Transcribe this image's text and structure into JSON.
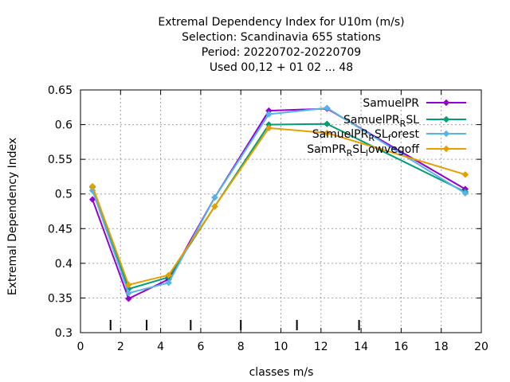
{
  "chart_data": {
    "type": "line",
    "title_lines": [
      "Extremal Dependency Index  for U10m (m/s)",
      "Selection: Scandinavia    655 stations",
      "Period: 20220702-20220709",
      "Used  00,12  + 01 02 ... 48"
    ],
    "xlabel": "classes m/s",
    "ylabel": "Extremal Dependency Index",
    "xlim": [
      0,
      20
    ],
    "ylim": [
      0.3,
      0.65
    ],
    "xticks": [
      0,
      2,
      4,
      6,
      8,
      10,
      12,
      14,
      16,
      18,
      20
    ],
    "yticks": [
      0.3,
      0.35,
      0.4,
      0.45,
      0.5,
      0.55,
      0.6,
      0.65
    ],
    "xtick_labels": [
      "0",
      "2",
      "4",
      "6",
      "8",
      "10",
      "12",
      "14",
      "16",
      "18",
      "20"
    ],
    "ytick_labels": [
      "0.3",
      "0.35",
      "0.4",
      "0.45",
      "0.5",
      "0.55",
      "0.6",
      "0.65"
    ],
    "grid": true,
    "legend_position": "top-right",
    "class_boundaries": [
      1.5,
      3.3,
      5.5,
      8,
      10.8,
      13.9
    ],
    "series": [
      {
        "name": "SamuelPR",
        "legend_text": "SamuelPR",
        "color": "#9400d3",
        "x": [
          0.6,
          2.4,
          4.4,
          6.7,
          9.4,
          12.3,
          19.2
        ],
        "y": [
          0.492,
          0.349,
          0.377,
          0.495,
          0.62,
          0.623,
          0.507
        ]
      },
      {
        "name": "SamuelPR_RSL",
        "legend_text": {
          "base": "SamuelPR",
          "sub": "R",
          "rest": "SL"
        },
        "color": "#009e73",
        "x": [
          0.6,
          2.4,
          4.4,
          6.7,
          9.4,
          12.3,
          19.2
        ],
        "y": [
          0.51,
          0.363,
          0.38,
          0.482,
          0.6,
          0.601,
          0.503
        ]
      },
      {
        "name": "SamuelPR_RSL_forest",
        "legend_text": {
          "base": "SamuelPR",
          "sub": "R",
          "mid": "SL",
          "sub2": "f",
          "rest": "orest"
        },
        "color": "#56b4e9",
        "x": [
          0.6,
          2.4,
          4.4,
          6.7,
          9.4,
          12.3,
          19.2
        ],
        "y": [
          0.505,
          0.357,
          0.372,
          0.495,
          0.615,
          0.624,
          0.501
        ]
      },
      {
        "name": "SamPR_RSL_lowvegoff",
        "legend_text": {
          "base": "SamPR",
          "sub": "R",
          "mid": "SL",
          "sub2": "l",
          "rest": "owvegoff"
        },
        "color": "#e69f00",
        "x": [
          0.6,
          2.4,
          4.4,
          6.7,
          9.4,
          12.3,
          19.2
        ],
        "y": [
          0.511,
          0.369,
          0.383,
          0.482,
          0.595,
          0.588,
          0.528
        ]
      }
    ]
  }
}
